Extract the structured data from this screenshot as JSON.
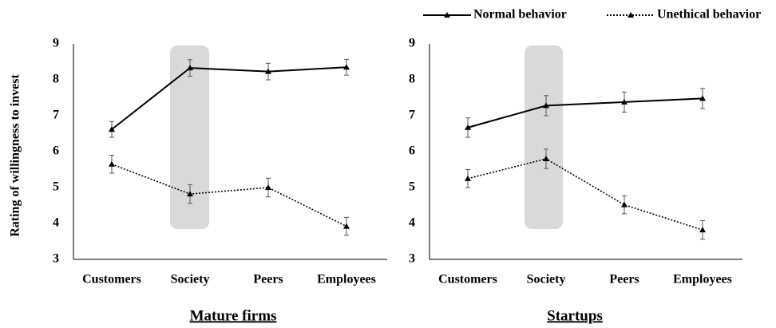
{
  "chart_data": [
    {
      "type": "line",
      "title": "Mature firms",
      "ylabel": "Rating of willingness to invest",
      "categories": [
        "Customers",
        "Society",
        "Peers",
        "Employees"
      ],
      "ylim": [
        3,
        9
      ],
      "yticks": [
        3,
        4,
        5,
        6,
        7,
        8,
        9
      ],
      "series": [
        {
          "name": "Normal behavior",
          "color": "#000000",
          "linestyle": "solid",
          "values": [
            6.62,
            8.33,
            8.23,
            8.35
          ],
          "errors": [
            0.22,
            0.23,
            0.23,
            0.22
          ]
        },
        {
          "name": "Unethical behavior",
          "color": "#000000",
          "linestyle": "dotted",
          "values": [
            5.65,
            4.82,
            5.0,
            3.92
          ],
          "errors": [
            0.25,
            0.26,
            0.26,
            0.25
          ]
        }
      ]
    },
    {
      "type": "line",
      "title": "Startups",
      "categories": [
        "Customers",
        "Society",
        "Peers",
        "Employees"
      ],
      "ylim": [
        3,
        9
      ],
      "yticks": [
        3,
        4,
        5,
        6,
        7,
        8,
        9
      ],
      "series": [
        {
          "name": "Normal behavior",
          "color": "#000000",
          "linestyle": "solid",
          "values": [
            6.67,
            7.28,
            7.38,
            7.48
          ],
          "errors": [
            0.27,
            0.28,
            0.28,
            0.28
          ]
        },
        {
          "name": "Unethical behavior",
          "color": "#000000",
          "linestyle": "dotted",
          "values": [
            5.25,
            5.8,
            4.52,
            3.82
          ],
          "errors": [
            0.25,
            0.27,
            0.25,
            0.26
          ]
        }
      ]
    }
  ]
}
